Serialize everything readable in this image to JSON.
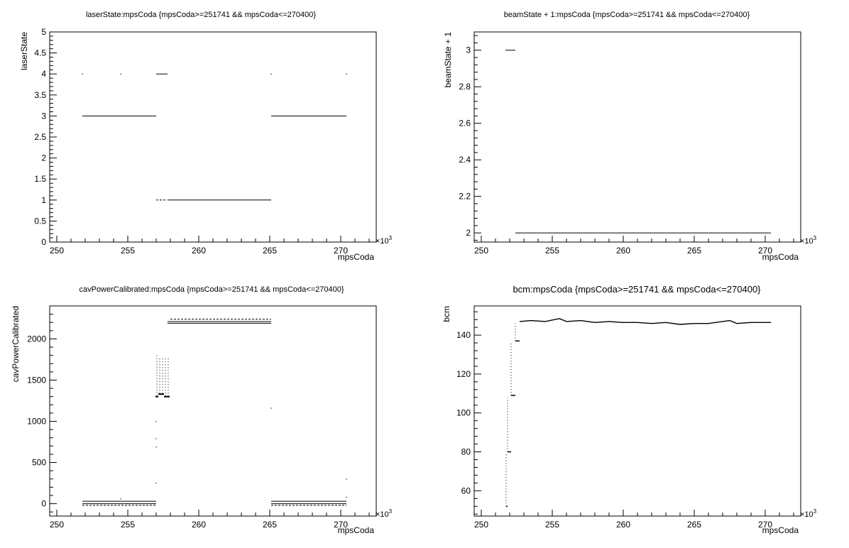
{
  "chart_data": [
    {
      "type": "scatter",
      "title": "laserState:mpsCoda {mpsCoda>=251741 && mpsCoda<=270400}",
      "xlabel": "mpsCoda",
      "ylabel": "laserState",
      "x_exponent": "×10",
      "x_exponent_power": "3",
      "xlim": [
        249.5,
        272.5
      ],
      "ylim": [
        0,
        5
      ],
      "x_ticks": [
        250,
        255,
        260,
        265,
        270
      ],
      "y_ticks": [
        0,
        0.5,
        1,
        1.5,
        2,
        2.5,
        3,
        3.5,
        4,
        4.5,
        5
      ],
      "grid": false,
      "segments": [
        {
          "x0": 251.8,
          "x1": 257.0,
          "y": 3
        },
        {
          "x0": 265.1,
          "x1": 270.4,
          "y": 3
        },
        {
          "x0": 257.0,
          "x1": 257.8,
          "y": 4
        },
        {
          "x0": 257.8,
          "x1": 265.1,
          "y": 1
        },
        {
          "x0": 257.0,
          "x1": 257.7,
          "y": 1,
          "dashed": true
        }
      ],
      "points": [
        {
          "x": 251.8,
          "y": 4
        },
        {
          "x": 254.5,
          "y": 4
        },
        {
          "x": 265.1,
          "y": 4
        },
        {
          "x": 270.4,
          "y": 4
        }
      ]
    },
    {
      "type": "scatter",
      "title": "beamState + 1:mpsCoda {mpsCoda>=251741 && mpsCoda<=270400}",
      "xlabel": "mpsCoda",
      "ylabel": "beamState + 1",
      "x_exponent": "×10",
      "x_exponent_power": "3",
      "xlim": [
        249.5,
        272.5
      ],
      "ylim": [
        1.95,
        3.1
      ],
      "x_ticks": [
        250,
        255,
        260,
        265,
        270
      ],
      "y_ticks": [
        2,
        2.2,
        2.4,
        2.6,
        2.8,
        3
      ],
      "grid": false,
      "segments": [
        {
          "x0": 251.7,
          "x1": 252.4,
          "y": 3
        },
        {
          "x0": 252.4,
          "x1": 270.4,
          "y": 2
        }
      ],
      "points": []
    },
    {
      "type": "scatter",
      "title": "cavPowerCalibrated:mpsCoda {mpsCoda>=251741 && mpsCoda<=270400}",
      "xlabel": "mpsCoda",
      "ylabel": "cavPowerCalibrated",
      "x_exponent": "×10",
      "x_exponent_power": "3",
      "xlim": [
        249.5,
        272.5
      ],
      "ylim": [
        -150,
        2400
      ],
      "x_ticks": [
        250,
        255,
        260,
        265,
        270
      ],
      "y_ticks": [
        0,
        500,
        1000,
        1500,
        2000
      ],
      "grid": false,
      "segments": [
        {
          "x0": 251.8,
          "x1": 257.0,
          "y": 30
        },
        {
          "x0": 251.8,
          "x1": 257.0,
          "y": 0
        },
        {
          "x0": 251.8,
          "x1": 257.0,
          "y": -20,
          "dashed": true
        },
        {
          "x0": 265.1,
          "x1": 270.4,
          "y": 30
        },
        {
          "x0": 265.1,
          "x1": 270.4,
          "y": 0
        },
        {
          "x0": 265.1,
          "x1": 270.4,
          "y": -20,
          "dashed": true
        },
        {
          "x0": 258.0,
          "x1": 265.1,
          "y": 2240,
          "dashed": true
        },
        {
          "x0": 257.8,
          "x1": 265.1,
          "y": 2210
        },
        {
          "x0": 257.8,
          "x1": 265.1,
          "y": 2190
        }
      ],
      "points": [
        {
          "x": 257.0,
          "y": 250
        },
        {
          "x": 257.0,
          "y": 690
        },
        {
          "x": 257.0,
          "y": 790
        },
        {
          "x": 257.0,
          "y": 1000
        },
        {
          "x": 265.1,
          "y": 1160
        },
        {
          "x": 270.4,
          "y": 300
        },
        {
          "x": 270.4,
          "y": 80
        },
        {
          "x": 254.5,
          "y": 60
        }
      ],
      "clusters": [
        {
          "x": 257.05,
          "y_min": 1300,
          "y_max": 1800
        },
        {
          "x": 257.25,
          "y_min": 1330,
          "y_max": 1760
        },
        {
          "x": 257.45,
          "y_min": 1330,
          "y_max": 1760
        },
        {
          "x": 257.65,
          "y_min": 1300,
          "y_max": 1760
        },
        {
          "x": 257.85,
          "y_min": 1300,
          "y_max": 1760
        }
      ]
    },
    {
      "type": "line",
      "title": "bcm:mpsCoda {mpsCoda>=251741 && mpsCoda<=270400}",
      "xlabel": "mpsCoda",
      "ylabel": "bcm",
      "x_exponent": "×10",
      "x_exponent_power": "3",
      "xlim": [
        249.5,
        272.5
      ],
      "ylim": [
        47,
        155
      ],
      "x_ticks": [
        250,
        255,
        260,
        265,
        270
      ],
      "y_ticks": [
        60,
        80,
        100,
        120,
        140
      ],
      "grid": false,
      "steps": [
        {
          "x0": 251.75,
          "x1": 251.85,
          "y": 52,
          "dotted_to": 79
        },
        {
          "x0": 251.85,
          "x1": 252.1,
          "y": 80,
          "dotted_to": 108
        },
        {
          "x0": 252.1,
          "x1": 252.4,
          "y": 109,
          "dotted_to": 136
        },
        {
          "x0": 252.4,
          "x1": 252.7,
          "y": 137,
          "dotted_to": 146
        }
      ],
      "x": [
        252.7,
        253.5,
        254.5,
        255.5,
        256.0,
        257.0,
        258.0,
        259.0,
        260.0,
        261.0,
        262.0,
        263.0,
        264.0,
        265.0,
        266.0,
        267.0,
        267.5,
        268.0,
        269.0,
        270.4
      ],
      "values": [
        147,
        147.5,
        147,
        148.5,
        147,
        147.5,
        146.5,
        147,
        146.5,
        146.5,
        146,
        146.5,
        145.5,
        146,
        146,
        147,
        147.5,
        146,
        146.5,
        146.5
      ]
    }
  ]
}
